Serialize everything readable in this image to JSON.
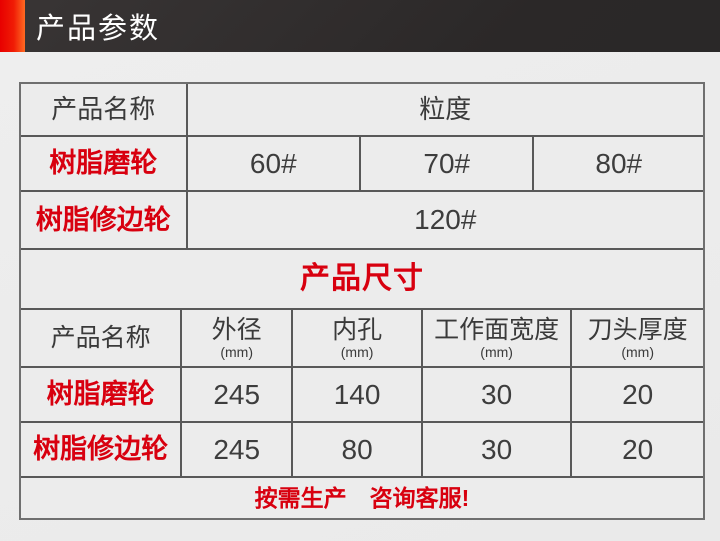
{
  "colors": {
    "accent_red_start": "#e80000",
    "accent_orange_end": "#ff6a22",
    "bar_bg": "#2e2b2b",
    "text_red": "#d8000f",
    "text_dark": "#3a3a3a",
    "border_gray": "#6f6f6f",
    "cell_bg": "#ececec"
  },
  "header": {
    "title": "产品参数"
  },
  "grit_table": {
    "name_header": "产品名称",
    "value_header": "粒度",
    "rows": [
      {
        "name": "树脂磨轮",
        "values": [
          "60#",
          "70#",
          "80#"
        ]
      },
      {
        "name": "树脂修边轮",
        "values": [
          "120#"
        ]
      }
    ]
  },
  "section_title": "产品尺寸",
  "size_table": {
    "headers": [
      {
        "label": "产品名称",
        "unit": ""
      },
      {
        "label": "外径",
        "unit": "(mm)"
      },
      {
        "label": "内孔",
        "unit": "(mm)"
      },
      {
        "label": "工作面宽度",
        "unit": "(mm)"
      },
      {
        "label": "刀头厚度",
        "unit": "(mm)"
      }
    ],
    "rows": [
      {
        "name": "树脂磨轮",
        "values": [
          "245",
          "140",
          "30",
          "20"
        ]
      },
      {
        "name": "树脂修边轮",
        "values": [
          "245",
          "80",
          "30",
          "20"
        ]
      }
    ]
  },
  "footer_note": "按需生产　咨询客服!"
}
